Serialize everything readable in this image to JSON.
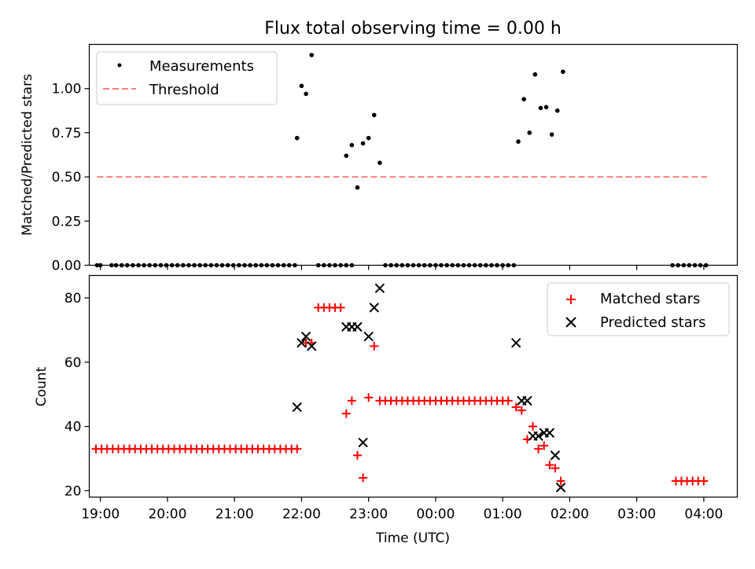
{
  "figure": {
    "title": "Flux total observing time = 0.00 h"
  },
  "chart_data": [
    {
      "type": "scatter",
      "panel": "top",
      "title": "Flux total observing time = 0.00 h",
      "xlabel": "",
      "ylabel": "Matched/Predicted stars",
      "xlim": [
        "18:50",
        "04:30"
      ],
      "ylim": [
        0,
        1.25
      ],
      "y_ticks": [
        0.0,
        0.25,
        0.5,
        0.75,
        1.0
      ],
      "y_tick_labels": [
        "0.00",
        "0.25",
        "0.50",
        "0.75",
        "1.00"
      ],
      "x_tick_labels_visible": false,
      "legend_placement": "top-left",
      "legend": [
        "Measurements",
        "Threshold"
      ],
      "threshold": {
        "name": "Threshold",
        "y": 0.5,
        "x_start": "18:57",
        "x_end": "04:03",
        "color": "#ff7f7f",
        "style": "dashed"
      },
      "series": [
        {
          "name": "Measurements",
          "color": "#000000",
          "x": [
            "18:57",
            "19:00",
            "19:10",
            "19:14",
            "19:19",
            "19:24",
            "19:29",
            "19:34",
            "19:39",
            "19:44",
            "19:49",
            "19:54",
            "19:59",
            "20:04",
            "20:09",
            "20:14",
            "20:19",
            "20:24",
            "20:29",
            "20:34",
            "20:39",
            "20:44",
            "20:49",
            "20:54",
            "20:59",
            "21:04",
            "21:09",
            "21:14",
            "21:19",
            "21:24",
            "21:29",
            "21:34",
            "21:39",
            "21:44",
            "21:49",
            "21:54",
            "21:56",
            "22:00",
            "22:04",
            "22:09",
            "22:15",
            "22:20",
            "22:25",
            "22:30",
            "22:35",
            "22:40",
            "22:45",
            "22:40",
            "22:45",
            "22:50",
            "22:55",
            "23:00",
            "23:05",
            "23:10",
            "23:15",
            "23:20",
            "23:25",
            "23:30",
            "23:35",
            "23:40",
            "23:45",
            "23:50",
            "23:55",
            "00:00",
            "00:05",
            "00:10",
            "00:15",
            "00:20",
            "00:25",
            "00:30",
            "00:35",
            "00:40",
            "00:45",
            "00:50",
            "00:55",
            "01:00",
            "01:05",
            "01:10",
            "01:14",
            "01:19",
            "01:24",
            "01:29",
            "01:34",
            "01:39",
            "01:44",
            "01:49",
            "01:54",
            "03:32",
            "03:37",
            "03:42",
            "03:47",
            "03:52",
            "03:57",
            "04:02"
          ],
          "y": [
            0,
            0,
            0,
            0,
            0,
            0,
            0,
            0,
            0,
            0,
            0,
            0,
            0,
            0,
            0,
            0,
            0,
            0,
            0,
            0,
            0,
            0,
            0,
            0,
            0,
            0,
            0,
            0,
            0,
            0,
            0,
            0,
            0,
            0,
            0,
            0,
            0.72,
            1.015,
            0.97,
            1.19,
            0,
            0,
            0,
            0,
            0,
            0.62,
            0.68,
            0,
            0,
            0.44,
            0.69,
            0.72,
            0.85,
            0.58,
            0,
            0,
            0,
            0,
            0,
            0,
            0,
            0,
            0,
            0,
            0,
            0,
            0,
            0,
            0,
            0,
            0,
            0,
            0,
            0,
            0,
            0,
            0,
            0,
            0.7,
            0.94,
            0.75,
            1.08,
            0.89,
            0.895,
            0.74,
            0.875,
            1.095,
            0,
            0,
            0,
            0,
            0,
            0,
            0
          ]
        }
      ]
    },
    {
      "type": "scatter",
      "panel": "bottom",
      "xlabel": "Time (UTC)",
      "ylabel": "Count",
      "xlim": [
        "18:50",
        "04:30"
      ],
      "ylim": [
        18,
        87
      ],
      "y_ticks": [
        20,
        40,
        60,
        80
      ],
      "x_tick_labels": [
        "19:00",
        "20:00",
        "21:00",
        "22:00",
        "23:00",
        "00:00",
        "01:00",
        "02:00",
        "03:00",
        "04:00"
      ],
      "legend_placement": "top-right",
      "legend": [
        "Matched stars",
        "Predicted stars"
      ],
      "series": [
        {
          "name": "Matched stars",
          "color": "#ff0000",
          "marker": "plus",
          "x": [
            "18:56",
            "19:01",
            "19:06",
            "19:11",
            "19:16",
            "19:21",
            "19:26",
            "19:31",
            "19:36",
            "19:41",
            "19:46",
            "19:51",
            "19:56",
            "20:01",
            "20:06",
            "20:11",
            "20:16",
            "20:21",
            "20:26",
            "20:31",
            "20:36",
            "20:41",
            "20:46",
            "20:51",
            "20:56",
            "21:01",
            "21:06",
            "21:11",
            "21:16",
            "21:21",
            "21:26",
            "21:31",
            "21:36",
            "21:41",
            "21:46",
            "21:51",
            "21:56",
            "22:04",
            "22:09",
            "22:15",
            "22:20",
            "22:25",
            "22:30",
            "22:35",
            "22:40",
            "22:45",
            "22:50",
            "22:55",
            "23:00",
            "23:05",
            "23:10",
            "23:15",
            "23:20",
            "23:25",
            "23:30",
            "23:35",
            "23:40",
            "23:45",
            "23:50",
            "23:55",
            "00:00",
            "00:05",
            "00:10",
            "00:15",
            "00:20",
            "00:25",
            "00:30",
            "00:35",
            "00:40",
            "00:45",
            "00:50",
            "00:55",
            "01:00",
            "01:05",
            "01:12",
            "01:17",
            "01:22",
            "01:27",
            "01:32",
            "01:37",
            "01:42",
            "01:47",
            "01:52",
            "03:35",
            "03:40",
            "03:45",
            "03:50",
            "03:55",
            "04:00"
          ],
          "y": [
            33,
            33,
            33,
            33,
            33,
            33,
            33,
            33,
            33,
            33,
            33,
            33,
            33,
            33,
            33,
            33,
            33,
            33,
            33,
            33,
            33,
            33,
            33,
            33,
            33,
            33,
            33,
            33,
            33,
            33,
            33,
            33,
            33,
            33,
            33,
            33,
            33,
            66,
            66,
            77,
            77,
            77,
            77,
            77,
            44,
            48,
            31,
            24,
            49,
            65,
            48,
            48,
            48,
            48,
            48,
            48,
            48,
            48,
            48,
            48,
            48,
            48,
            48,
            48,
            48,
            48,
            48,
            48,
            48,
            48,
            48,
            48,
            48,
            48,
            46,
            45,
            36,
            40,
            33,
            34,
            28,
            27,
            23,
            23,
            23,
            23,
            23,
            23,
            23
          ]
        },
        {
          "name": "Predicted stars",
          "color": "#000000",
          "marker": "x",
          "x": [
            "21:56",
            "22:00",
            "22:04",
            "22:09",
            "22:40",
            "22:45",
            "22:50",
            "22:55",
            "23:00",
            "23:05",
            "23:10",
            "01:12",
            "01:17",
            "01:22",
            "01:27",
            "01:32",
            "01:37",
            "01:42",
            "01:47",
            "01:52"
          ],
          "y": [
            46,
            66,
            68,
            65,
            71,
            71,
            71,
            35,
            68,
            77,
            83,
            66,
            48,
            48,
            37,
            37,
            38,
            38,
            31,
            21
          ]
        }
      ]
    }
  ]
}
